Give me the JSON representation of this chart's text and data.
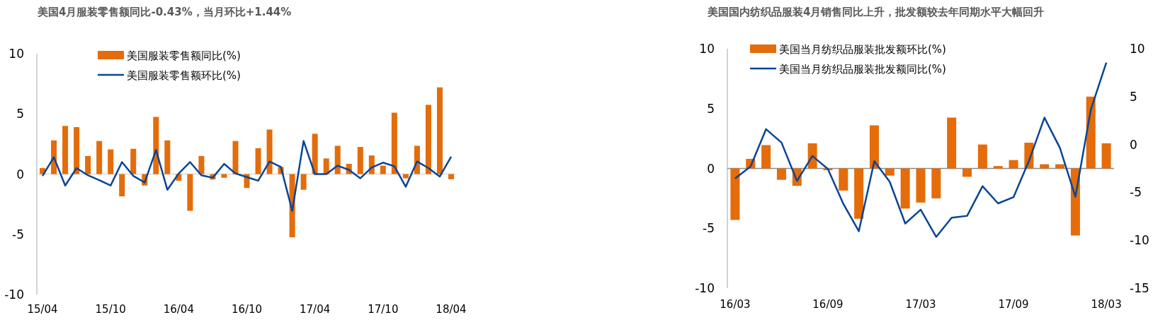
{
  "chart_data": [
    {
      "type": "bar",
      "title": "美国4月服装零售额同比-0.43%，当月环比+1.44%",
      "categories": [
        "15/04",
        null,
        null,
        null,
        null,
        null,
        "15/10",
        null,
        null,
        null,
        null,
        null,
        "16/04",
        null,
        null,
        null,
        null,
        null,
        "16/10",
        null,
        null,
        null,
        null,
        null,
        "17/04",
        null,
        null,
        null,
        null,
        null,
        "17/10",
        null,
        null,
        null,
        null,
        null,
        "18/04"
      ],
      "series": [
        {
          "name": "美国服装零售额同比(%)",
          "color": "#e46c0a",
          "values": [
            0.5,
            2.8,
            4.0,
            3.9,
            1.5,
            2.75,
            2.05,
            -1.85,
            2.1,
            -0.95,
            4.75,
            2.8,
            -0.55,
            -3.05,
            1.5,
            -0.45,
            -0.3,
            2.75,
            -1.15,
            2.15,
            3.7,
            0.6,
            -5.25,
            -1.3,
            3.35,
            1.3,
            2.35,
            0.85,
            2.25,
            1.55,
            0.7,
            5.1,
            -0.35,
            2.35,
            5.75,
            7.2,
            -0.43
          ]
        },
        {
          "name": "美国服装零售额环比(%)",
          "type": "line",
          "color": "#0a4595",
          "values": [
            -0.15,
            1.4,
            -0.95,
            0.5,
            -0.1,
            -0.5,
            -0.95,
            1.0,
            -0.15,
            -0.7,
            2.0,
            -1.3,
            0.05,
            1.0,
            -0.1,
            -0.3,
            0.85,
            0.05,
            -0.25,
            -0.55,
            1.05,
            0.6,
            -3.05,
            2.75,
            0,
            0,
            0.7,
            0.35,
            -0.35,
            0.55,
            0.95,
            0.65,
            -1.05,
            1.05,
            0.5,
            -0.2,
            1.44
          ]
        }
      ],
      "ylim": [
        -10,
        10
      ],
      "yticks": [
        -10,
        -5,
        0,
        5,
        10
      ],
      "legend": "top left",
      "line_style": "solid"
    },
    {
      "type": "bar",
      "title": "美国国内纺织品服装4月销售同比上升，批发额较去年同期水平大幅回升",
      "categories": [
        "16/03",
        null,
        null,
        null,
        null,
        null,
        "16/09",
        null,
        null,
        null,
        null,
        null,
        "17/03",
        null,
        null,
        null,
        null,
        null,
        "17/09",
        null,
        null,
        null,
        null,
        null,
        "18/03"
      ],
      "series": [
        {
          "name": "美国当月纺织品服装批发额环比(%)",
          "color": "#e46c0a",
          "values": [
            -4.3,
            0.8,
            1.95,
            -0.95,
            -1.45,
            2.1,
            -0.15,
            -1.85,
            -4.2,
            3.6,
            -0.6,
            -3.35,
            -2.85,
            -2.5,
            4.25,
            -0.7,
            2.0,
            0.2,
            0.7,
            2.15,
            0.35,
            0.35,
            -5.6,
            6.0,
            2.1
          ]
        },
        {
          "name": "美国当月纺织品服装批发额同比(%)",
          "type": "line",
          "axis": "y2",
          "color": "#0a4595",
          "values": [
            -3.55,
            -2.3,
            1.6,
            0.2,
            -3.8,
            -1.2,
            -2.55,
            -6.2,
            -9.05,
            -1.75,
            -3.9,
            -8.25,
            -6.8,
            -9.65,
            -7.65,
            -7.45,
            -4.35,
            -6.15,
            -5.5,
            -1.7,
            2.8,
            -0.35,
            -5.45,
            3.65,
            8.55
          ]
        }
      ],
      "ylim": [
        -10,
        10
      ],
      "yticks": [
        -10,
        -5,
        0,
        5,
        10
      ],
      "y2lim": [
        -15,
        10
      ],
      "y2ticks": [
        -15,
        -10,
        -5,
        0,
        5,
        10
      ],
      "legend": "top left",
      "line_style": "solid"
    }
  ]
}
